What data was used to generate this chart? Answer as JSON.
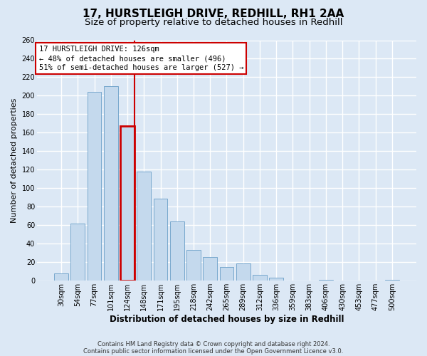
{
  "title1": "17, HURSTLEIGH DRIVE, REDHILL, RH1 2AA",
  "title2": "Size of property relative to detached houses in Redhill",
  "xlabel": "Distribution of detached houses by size in Redhill",
  "ylabel": "Number of detached properties",
  "footnote": "Contains HM Land Registry data © Crown copyright and database right 2024.\nContains public sector information licensed under the Open Government Licence v3.0.",
  "categories": [
    "30sqm",
    "54sqm",
    "77sqm",
    "101sqm",
    "124sqm",
    "148sqm",
    "171sqm",
    "195sqm",
    "218sqm",
    "242sqm",
    "265sqm",
    "289sqm",
    "312sqm",
    "336sqm",
    "359sqm",
    "383sqm",
    "406sqm",
    "430sqm",
    "453sqm",
    "477sqm",
    "500sqm"
  ],
  "values": [
    8,
    62,
    204,
    210,
    167,
    118,
    89,
    64,
    33,
    26,
    15,
    19,
    6,
    3,
    0,
    0,
    1,
    0,
    0,
    0,
    1
  ],
  "bar_color": "#c4d9ed",
  "bar_edge_color": "#6a9fc8",
  "highlight_bar_index": 4,
  "highlight_line_color": "#cc0000",
  "highlight_bar_edge_color": "#cc0000",
  "annotation_text": "17 HURSTLEIGH DRIVE: 126sqm\n← 48% of detached houses are smaller (496)\n51% of semi-detached houses are larger (527) →",
  "annotation_box_facecolor": "#ffffff",
  "annotation_box_edgecolor": "#cc0000",
  "ylim": [
    0,
    260
  ],
  "yticks": [
    0,
    20,
    40,
    60,
    80,
    100,
    120,
    140,
    160,
    180,
    200,
    220,
    240,
    260
  ],
  "background_color": "#dce8f5",
  "grid_color": "#ffffff",
  "title1_fontsize": 11,
  "title2_fontsize": 9.5,
  "axis_xlabel_fontsize": 8.5,
  "axis_ylabel_fontsize": 8,
  "tick_fontsize": 7,
  "annotation_fontsize": 7.5,
  "footnote_fontsize": 6
}
